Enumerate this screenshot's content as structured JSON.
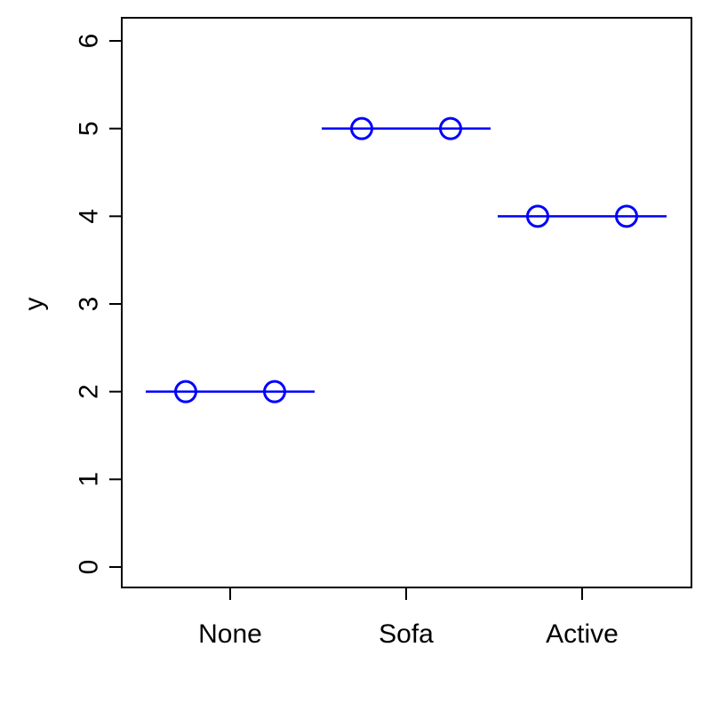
{
  "chart_data": {
    "type": "scatter",
    "title": "",
    "xlabel": "",
    "ylabel": "y",
    "categories": [
      "None",
      "Sofa",
      "Active"
    ],
    "ylim": [
      0,
      6
    ],
    "yticks": [
      "0",
      "1",
      "2",
      "3",
      "4",
      "5",
      "6"
    ],
    "grid": false,
    "series": [
      {
        "values": [
          2,
          5,
          4
        ],
        "points": [
          {
            "category": "None",
            "y": 2
          },
          {
            "category": "None",
            "y": 2
          },
          {
            "category": "Sofa",
            "y": 5
          },
          {
            "category": "Sofa",
            "y": 5
          },
          {
            "category": "Active",
            "y": 4
          },
          {
            "category": "Active",
            "y": 4
          }
        ],
        "group_means": [
          2,
          5,
          4
        ]
      }
    ],
    "colors": {
      "marks": "#0000ff",
      "axis": "#000000"
    }
  }
}
